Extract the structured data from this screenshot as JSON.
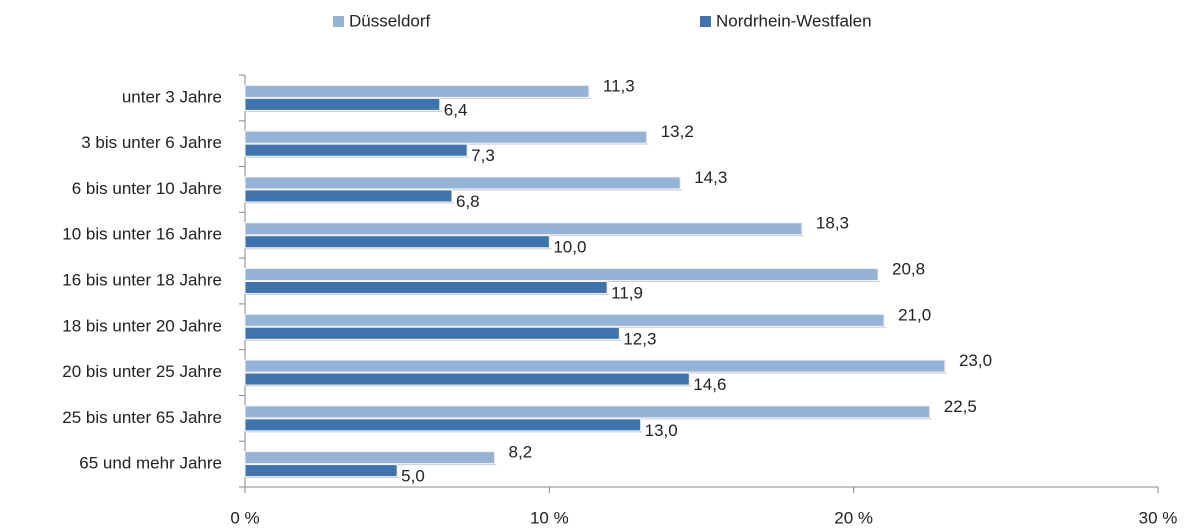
{
  "chart_data": {
    "type": "bar",
    "orientation": "horizontal",
    "categories": [
      "unter 3 Jahre",
      "3 bis unter 6 Jahre",
      "6 bis unter 10 Jahre",
      "10 bis unter 16 Jahre",
      "16 bis unter 18 Jahre",
      "18 bis unter 20 Jahre",
      "20 bis unter 25 Jahre",
      "25 bis unter 65 Jahre",
      "65 und mehr Jahre"
    ],
    "series": [
      {
        "name": "Düsseldorf",
        "color": "#95b3d7",
        "values": [
          11.3,
          13.2,
          14.3,
          18.3,
          20.8,
          21.0,
          23.0,
          22.5,
          8.2
        ],
        "value_labels": [
          "11,3",
          "13,2",
          "14,3",
          "18,3",
          "20,8",
          "21,0",
          "23,0",
          "22,5",
          "8,2"
        ]
      },
      {
        "name": "Nordrhein-Westfalen",
        "color": "#3f73ad",
        "values": [
          6.4,
          7.3,
          6.8,
          10.0,
          11.9,
          12.3,
          14.6,
          13.0,
          5.0
        ],
        "value_labels": [
          "6,4",
          "7,3",
          "6,8",
          "10,0",
          "11,9",
          "12,3",
          "14,6",
          "13,0",
          "5,0"
        ]
      }
    ],
    "xlim": [
      0,
      30
    ],
    "xticks": [
      {
        "value": 0,
        "label": "0 %"
      },
      {
        "value": 10,
        "label": "10 %"
      },
      {
        "value": 20,
        "label": "20 %"
      },
      {
        "value": 30,
        "label": "30 %"
      }
    ],
    "legend": "top"
  }
}
